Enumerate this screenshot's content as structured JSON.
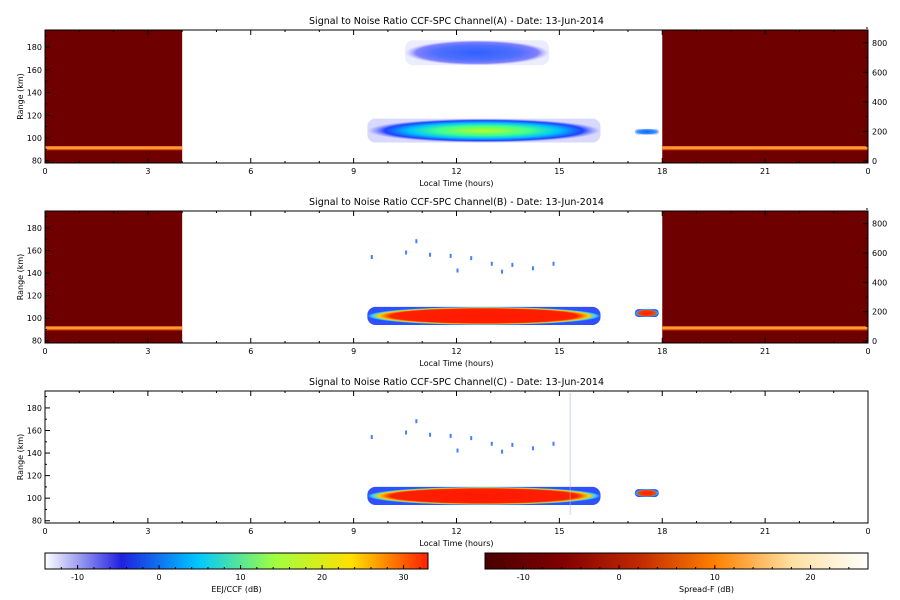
{
  "chart_data": [
    {
      "type": "heatmap",
      "title": "Signal to Noise Ratio CCF-SPC Channel(A) - Date: 13-Jun-2014",
      "xlabel": "Local Time (hours)",
      "ylabel": "Range (km)",
      "xlim": [
        0,
        24
      ],
      "ylim": [
        78,
        195
      ],
      "y2lim": [
        0,
        900
      ],
      "xticks": [
        "0",
        "3",
        "6",
        "9",
        "12",
        "15",
        "18",
        "21",
        "0"
      ],
      "yticks": [
        "80",
        "100",
        "120",
        "140",
        "160",
        "180"
      ],
      "y2ticks": [
        "0",
        "200",
        "400",
        "600",
        "800"
      ],
      "spreadF_background": [
        [
          0,
          4
        ],
        [
          18,
          24
        ]
      ],
      "spreadF_line_range_km": 91,
      "echo_regions": [
        {
          "t": [
            10.5,
            14.7
          ],
          "range_km": [
            164,
            186
          ],
          "snr_db": -5
        },
        {
          "t": [
            9.4,
            16.2
          ],
          "range_km": [
            96,
            117
          ],
          "snr_db": 8
        },
        {
          "t": [
            17.2,
            17.9
          ],
          "range_km": [
            103,
            108
          ],
          "snr_db": -3
        }
      ]
    },
    {
      "type": "heatmap",
      "title": "Signal to Noise Ratio CCF-SPC Channel(B) - Date: 13-Jun-2014",
      "xlabel": "Local Time (hours)",
      "ylabel": "Range (km)",
      "xlim": [
        0,
        24
      ],
      "ylim": [
        78,
        195
      ],
      "y2lim": [
        0,
        900
      ],
      "xticks": [
        "0",
        "3",
        "6",
        "9",
        "12",
        "15",
        "18",
        "21",
        "0"
      ],
      "yticks": [
        "80",
        "100",
        "120",
        "140",
        "160",
        "180"
      ],
      "y2ticks": [
        "0",
        "200",
        "400",
        "600",
        "800"
      ],
      "spreadF_background": [
        [
          0,
          4
        ],
        [
          18,
          24
        ]
      ],
      "spreadF_line_range_km": 91,
      "echo_regions": [
        {
          "t": [
            9.4,
            16.2
          ],
          "range_km": [
            94,
            110
          ],
          "snr_db": 30
        },
        {
          "t": [
            17.2,
            17.9
          ],
          "range_km": [
            101,
            108
          ],
          "snr_db": 25
        }
      ]
    },
    {
      "type": "heatmap",
      "title": "Signal to Noise Ratio CCF-SPC Channel(C) - Date: 13-Jun-2014",
      "xlabel": "Local Time (hours)",
      "ylabel": "Range (km)",
      "xlim": [
        0,
        24
      ],
      "ylim": [
        78,
        195
      ],
      "xticks": [
        "0",
        "3",
        "6",
        "9",
        "12",
        "15",
        "18",
        "21",
        "0"
      ],
      "yticks": [
        "80",
        "100",
        "120",
        "140",
        "160",
        "180"
      ],
      "echo_regions": [
        {
          "t": [
            9.4,
            16.2
          ],
          "range_km": [
            94,
            110
          ],
          "snr_db": 30
        },
        {
          "t": [
            17.2,
            17.9
          ],
          "range_km": [
            101,
            108
          ],
          "snr_db": 25
        }
      ]
    }
  ],
  "colorbars": [
    {
      "label": "EEJ/CCF (dB)",
      "range": [
        -14,
        33
      ],
      "ticks": [
        "-10",
        "0",
        "10",
        "20",
        "30"
      ],
      "tick_values": [
        -10,
        0,
        10,
        20,
        30
      ],
      "colors": [
        "#ffffff",
        "#2020e0",
        "#00c8ff",
        "#a0ff40",
        "#ffe000",
        "#ff2000"
      ]
    },
    {
      "label": "Spread-F (dB)",
      "range": [
        -14,
        26
      ],
      "ticks": [
        "-10",
        "0",
        "10",
        "20"
      ],
      "tick_values": [
        -10,
        0,
        10,
        20
      ],
      "colors": [
        "#4a0000",
        "#800000",
        "#c02800",
        "#ff8000",
        "#ffe0a0",
        "#ffffff"
      ]
    }
  ],
  "colors": {
    "spreadF_bg": "#6e0000",
    "spreadF_line": "#ff9a30",
    "axis": "#000000"
  }
}
